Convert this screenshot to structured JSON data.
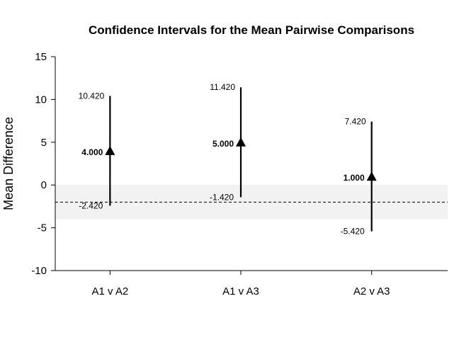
{
  "chart_data": {
    "type": "interval",
    "title": "Confidence Intervals for the Mean Pairwise Comparisons",
    "ylabel": "Mean Difference",
    "xlabel": "",
    "ylim": [
      -10,
      15
    ],
    "yticks": [
      -10,
      -5,
      0,
      5,
      10,
      15
    ],
    "reference_line": -2,
    "shaded_band": [
      -4,
      0
    ],
    "categories": [
      "A1 v A2",
      "A1 v A3",
      "A2 v A3"
    ],
    "points": [
      {
        "category": "A1 v A2",
        "mean": 4.0,
        "lower": -2.42,
        "upper": 10.42,
        "mean_label": "4.000",
        "lower_label": "-2.420",
        "upper_label": "10.420"
      },
      {
        "category": "A1 v A3",
        "mean": 5.0,
        "lower": -1.42,
        "upper": 11.42,
        "mean_label": "5.000",
        "lower_label": "-1.420",
        "upper_label": "11.420"
      },
      {
        "category": "A2 v A3",
        "mean": 1.0,
        "lower": -5.42,
        "upper": 7.42,
        "mean_label": "1.000",
        "lower_label": "-5.420",
        "upper_label": "7.420"
      }
    ],
    "grid": false,
    "legend": "none",
    "colors": {
      "marker": "#000000",
      "band": "#f2f2f2",
      "reference": "#000000"
    }
  }
}
